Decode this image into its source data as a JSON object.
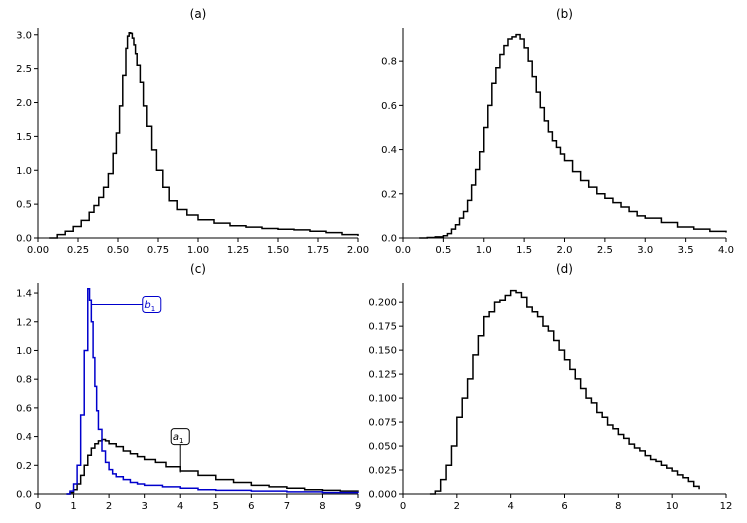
{
  "chart_data": [
    {
      "id": "a",
      "type": "step",
      "title": "(a)",
      "xlim": [
        0,
        2.0
      ],
      "ylim": [
        0,
        3.1
      ],
      "xticks": [
        "0.00",
        "0.25",
        "0.50",
        "0.75",
        "1.00",
        "1.25",
        "1.50",
        "1.75",
        "2.00"
      ],
      "yticks": [
        "0.0",
        "0.5",
        "1.0",
        "1.5",
        "2.0",
        "2.5",
        "3.0"
      ],
      "series": [
        {
          "name": "density",
          "color": "#000000",
          "x": [
            0.07,
            0.12,
            0.17,
            0.22,
            0.27,
            0.32,
            0.35,
            0.38,
            0.41,
            0.44,
            0.47,
            0.49,
            0.51,
            0.53,
            0.55,
            0.56,
            0.57,
            0.58,
            0.59,
            0.6,
            0.61,
            0.62,
            0.64,
            0.66,
            0.68,
            0.71,
            0.74,
            0.78,
            0.82,
            0.87,
            0.93,
            1.0,
            1.1,
            1.2,
            1.3,
            1.4,
            1.5,
            1.6,
            1.7,
            1.8,
            1.9,
            2.0
          ],
          "y": [
            0.0,
            0.05,
            0.1,
            0.17,
            0.26,
            0.38,
            0.48,
            0.6,
            0.75,
            0.95,
            1.25,
            1.55,
            1.95,
            2.4,
            2.8,
            2.98,
            3.03,
            3.02,
            2.95,
            2.85,
            2.72,
            2.55,
            2.3,
            1.95,
            1.65,
            1.3,
            1.0,
            0.75,
            0.55,
            0.42,
            0.34,
            0.27,
            0.22,
            0.18,
            0.16,
            0.14,
            0.13,
            0.12,
            0.1,
            0.08,
            0.05,
            0.03
          ]
        }
      ]
    },
    {
      "id": "b",
      "type": "step",
      "title": "(b)",
      "xlim": [
        0,
        4.0
      ],
      "ylim": [
        0,
        0.95
      ],
      "xticks": [
        "0.0",
        "0.5",
        "1.0",
        "1.5",
        "2.0",
        "2.5",
        "3.0",
        "3.5",
        "4.0"
      ],
      "yticks": [
        "0.0",
        "0.2",
        "0.4",
        "0.6",
        "0.8"
      ],
      "series": [
        {
          "name": "density",
          "color": "#000000",
          "x": [
            0.2,
            0.3,
            0.4,
            0.5,
            0.55,
            0.6,
            0.65,
            0.7,
            0.75,
            0.8,
            0.85,
            0.9,
            0.95,
            1.0,
            1.05,
            1.1,
            1.15,
            1.2,
            1.25,
            1.3,
            1.35,
            1.4,
            1.45,
            1.5,
            1.55,
            1.6,
            1.65,
            1.7,
            1.75,
            1.8,
            1.85,
            1.9,
            1.95,
            2.0,
            2.1,
            2.2,
            2.3,
            2.4,
            2.5,
            2.6,
            2.7,
            2.8,
            2.9,
            3.0,
            3.2,
            3.4,
            3.6,
            3.8,
            4.0
          ],
          "y": [
            0.0,
            0.002,
            0.005,
            0.01,
            0.02,
            0.04,
            0.06,
            0.09,
            0.12,
            0.17,
            0.24,
            0.31,
            0.39,
            0.5,
            0.6,
            0.7,
            0.77,
            0.83,
            0.87,
            0.9,
            0.91,
            0.92,
            0.9,
            0.86,
            0.8,
            0.73,
            0.66,
            0.59,
            0.53,
            0.48,
            0.44,
            0.41,
            0.38,
            0.35,
            0.3,
            0.26,
            0.23,
            0.2,
            0.18,
            0.16,
            0.14,
            0.12,
            0.1,
            0.09,
            0.07,
            0.05,
            0.04,
            0.03,
            0.025
          ]
        }
      ]
    },
    {
      "id": "c",
      "type": "step",
      "title": "(c)",
      "xlim": [
        0,
        9
      ],
      "ylim": [
        0,
        1.47
      ],
      "xticks": [
        "0",
        "1",
        "2",
        "3",
        "4",
        "5",
        "6",
        "7",
        "8",
        "9"
      ],
      "yticks": [
        "0.0",
        "0.2",
        "0.4",
        "0.6",
        "0.8",
        "1.0",
        "1.2",
        "1.4"
      ],
      "series": [
        {
          "name": "a1",
          "color": "#000000",
          "x": [
            0.8,
            0.9,
            1.0,
            1.1,
            1.2,
            1.3,
            1.4,
            1.5,
            1.6,
            1.7,
            1.8,
            1.9,
            2.0,
            2.2,
            2.4,
            2.6,
            2.8,
            3.0,
            3.3,
            3.6,
            4.0,
            4.5,
            5.0,
            5.5,
            6.0,
            6.5,
            7.0,
            7.5,
            8.0,
            8.5,
            9.0
          ],
          "y": [
            0.0,
            0.01,
            0.03,
            0.07,
            0.13,
            0.2,
            0.27,
            0.32,
            0.35,
            0.37,
            0.38,
            0.37,
            0.35,
            0.33,
            0.3,
            0.28,
            0.26,
            0.24,
            0.22,
            0.19,
            0.16,
            0.13,
            0.1,
            0.08,
            0.06,
            0.05,
            0.04,
            0.03,
            0.025,
            0.02,
            0.015
          ]
        },
        {
          "name": "b1",
          "color": "#0000cc",
          "x": [
            0.8,
            0.9,
            1.0,
            1.1,
            1.2,
            1.3,
            1.4,
            1.45,
            1.5,
            1.55,
            1.6,
            1.65,
            1.7,
            1.8,
            1.9,
            2.0,
            2.1,
            2.2,
            2.4,
            2.6,
            2.8,
            3.0,
            3.5,
            4.0,
            4.5,
            5.0,
            6.0,
            7.0,
            8.0,
            9.0
          ],
          "y": [
            0.0,
            0.02,
            0.07,
            0.2,
            0.55,
            1.0,
            1.43,
            1.35,
            1.2,
            0.95,
            0.75,
            0.58,
            0.45,
            0.3,
            0.22,
            0.17,
            0.14,
            0.12,
            0.1,
            0.08,
            0.07,
            0.06,
            0.05,
            0.04,
            0.03,
            0.025,
            0.02,
            0.015,
            0.01,
            0.005
          ]
        }
      ],
      "annotations": [
        {
          "series": "b1",
          "text": "b",
          "subscript": "1",
          "point": [
            1.5,
            1.32
          ],
          "label_at": [
            3.2,
            1.32
          ]
        },
        {
          "series": "a1",
          "text": "a",
          "subscript": "1",
          "point": [
            4.0,
            0.15
          ],
          "label_at": [
            4.0,
            0.4
          ]
        }
      ]
    },
    {
      "id": "d",
      "type": "step",
      "title": "(d)",
      "xlim": [
        0,
        12
      ],
      "ylim": [
        0,
        0.22
      ],
      "xticks": [
        "0",
        "2",
        "4",
        "6",
        "8",
        "10",
        "12"
      ],
      "yticks": [
        "0.000",
        "0.025",
        "0.050",
        "0.075",
        "0.100",
        "0.125",
        "0.150",
        "0.175",
        "0.200"
      ],
      "series": [
        {
          "name": "density",
          "color": "#000000",
          "x": [
            1.0,
            1.2,
            1.4,
            1.6,
            1.8,
            2.0,
            2.2,
            2.4,
            2.6,
            2.8,
            3.0,
            3.2,
            3.4,
            3.6,
            3.8,
            4.0,
            4.2,
            4.4,
            4.6,
            4.8,
            5.0,
            5.2,
            5.4,
            5.6,
            5.8,
            6.0,
            6.2,
            6.4,
            6.6,
            6.8,
            7.0,
            7.2,
            7.4,
            7.6,
            7.8,
            8.0,
            8.2,
            8.4,
            8.6,
            8.8,
            9.0,
            9.2,
            9.4,
            9.6,
            9.8,
            10.0,
            10.2,
            10.4,
            10.6,
            10.8,
            11.0
          ],
          "y": [
            0.0,
            0.003,
            0.015,
            0.03,
            0.05,
            0.08,
            0.1,
            0.12,
            0.145,
            0.165,
            0.185,
            0.19,
            0.2,
            0.202,
            0.207,
            0.212,
            0.21,
            0.205,
            0.195,
            0.19,
            0.185,
            0.175,
            0.17,
            0.16,
            0.15,
            0.14,
            0.13,
            0.12,
            0.11,
            0.1,
            0.095,
            0.085,
            0.08,
            0.072,
            0.068,
            0.062,
            0.058,
            0.052,
            0.048,
            0.045,
            0.04,
            0.036,
            0.034,
            0.03,
            0.027,
            0.024,
            0.02,
            0.017,
            0.013,
            0.008,
            0.005
          ]
        }
      ]
    }
  ]
}
